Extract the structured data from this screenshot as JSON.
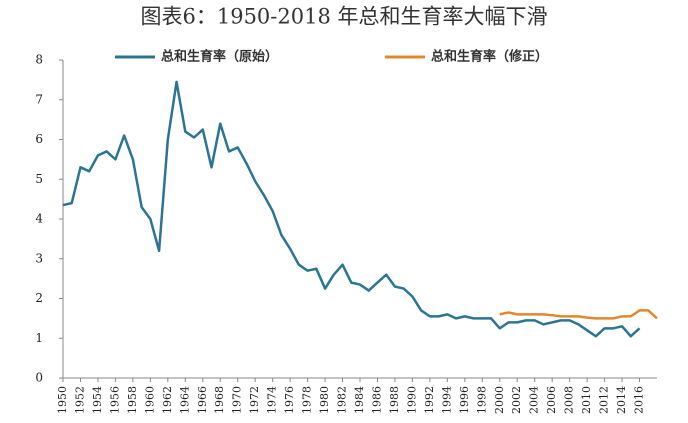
{
  "chart_data": {
    "type": "line",
    "title": "图表6：1950-2018 年总和生育率大幅下滑",
    "x": [
      1950,
      1951,
      1952,
      1953,
      1954,
      1955,
      1956,
      1957,
      1958,
      1959,
      1960,
      1961,
      1962,
      1963,
      1964,
      1965,
      1966,
      1967,
      1968,
      1969,
      1970,
      1971,
      1972,
      1973,
      1974,
      1975,
      1976,
      1977,
      1978,
      1979,
      1980,
      1981,
      1982,
      1983,
      1984,
      1985,
      1986,
      1987,
      1988,
      1989,
      1990,
      1991,
      1992,
      1993,
      1994,
      1995,
      1996,
      1997,
      1998,
      1999,
      2000,
      2001,
      2002,
      2003,
      2004,
      2005,
      2006,
      2007,
      2008,
      2009,
      2010,
      2011,
      2012,
      2013,
      2014,
      2015,
      2016,
      2017,
      2018
    ],
    "series": [
      {
        "name": "总和生育率（原始）",
        "color": "#2b7594",
        "values": [
          4.35,
          4.4,
          5.3,
          5.2,
          5.6,
          5.7,
          5.5,
          6.1,
          5.5,
          4.3,
          4.0,
          3.2,
          6.0,
          7.45,
          6.2,
          6.05,
          6.25,
          5.3,
          6.4,
          5.7,
          5.8,
          5.4,
          4.95,
          4.6,
          4.2,
          3.6,
          3.25,
          2.85,
          2.7,
          2.75,
          2.25,
          2.6,
          2.85,
          2.4,
          2.35,
          2.2,
          2.4,
          2.6,
          2.3,
          2.25,
          2.05,
          1.7,
          1.55,
          1.55,
          1.6,
          1.5,
          1.55,
          1.5,
          1.5,
          1.5,
          1.25,
          1.4,
          1.4,
          1.45,
          1.45,
          1.35,
          1.4,
          1.45,
          1.45,
          1.35,
          1.2,
          1.05,
          1.25,
          1.25,
          1.3,
          1.05,
          1.25,
          null,
          null
        ]
      },
      {
        "name": "总和生育率（修正）",
        "color": "#e0892c",
        "values": [
          null,
          null,
          null,
          null,
          null,
          null,
          null,
          null,
          null,
          null,
          null,
          null,
          null,
          null,
          null,
          null,
          null,
          null,
          null,
          null,
          null,
          null,
          null,
          null,
          null,
          null,
          null,
          null,
          null,
          null,
          null,
          null,
          null,
          null,
          null,
          null,
          null,
          null,
          null,
          null,
          null,
          null,
          null,
          null,
          null,
          null,
          null,
          null,
          null,
          null,
          1.6,
          1.65,
          1.6,
          1.6,
          1.6,
          1.6,
          1.58,
          1.55,
          1.55,
          1.55,
          1.52,
          1.5,
          1.5,
          1.5,
          1.55,
          1.55,
          1.7,
          1.7,
          1.5
        ]
      }
    ],
    "xlim": [
      1950,
      2018
    ],
    "xticks": [
      1950,
      1952,
      1954,
      1956,
      1958,
      1960,
      1962,
      1964,
      1966,
      1968,
      1970,
      1972,
      1974,
      1976,
      1978,
      1980,
      1982,
      1984,
      1986,
      1988,
      1990,
      1992,
      1994,
      1996,
      1998,
      2000,
      2002,
      2004,
      2006,
      2008,
      2010,
      2012,
      2014,
      2016
    ],
    "ylim": [
      0,
      8
    ],
    "yticks": [
      0,
      1,
      2,
      3,
      4,
      5,
      6,
      7,
      8
    ],
    "grid": false,
    "legend": "top"
  }
}
